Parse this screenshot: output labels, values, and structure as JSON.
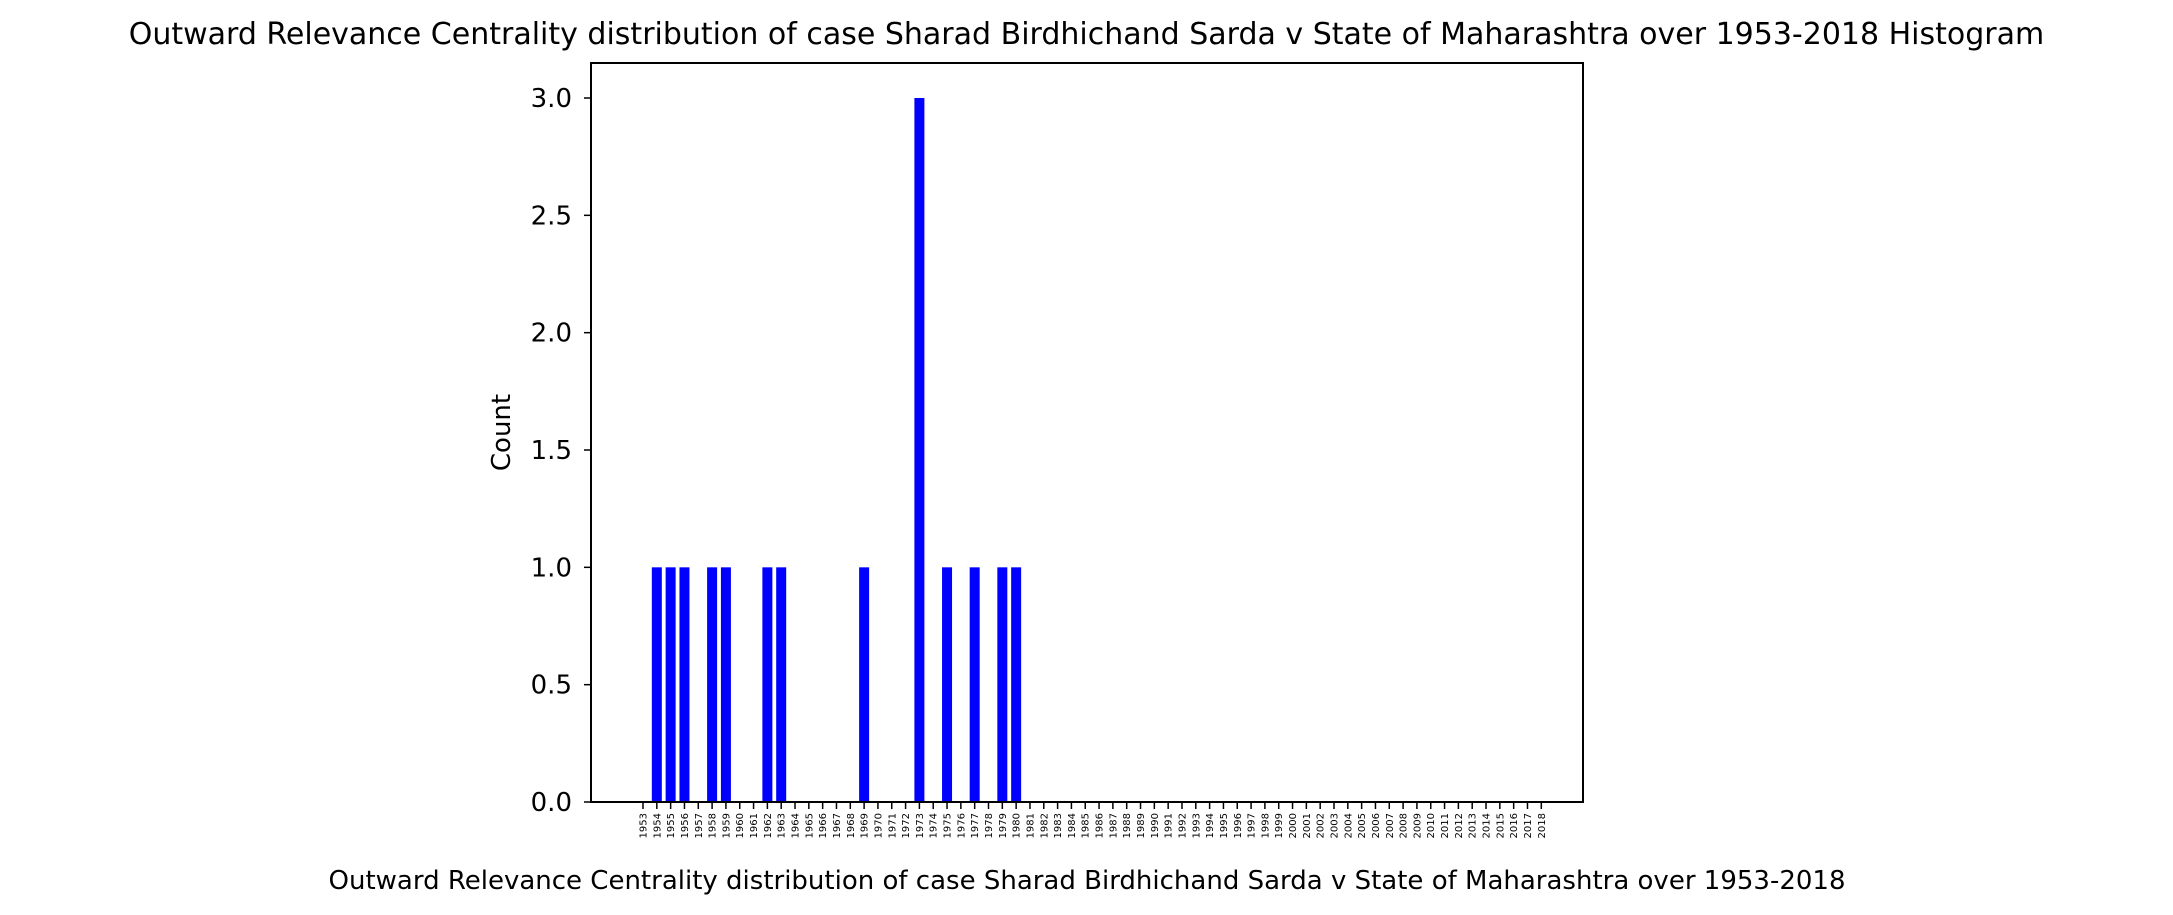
{
  "chart_data": {
    "type": "bar",
    "title": "Outward Relevance Centrality distribution of case Sharad Birdhichand Sarda v State of Maharashtra over 1953-2018 Histogram",
    "xlabel": "Outward Relevance Centrality distribution of case Sharad Birdhichand Sarda v State of Maharashtra over 1953-2018",
    "ylabel": "Count",
    "ylim": [
      0,
      3.15
    ],
    "yticks": [
      "0.0",
      "0.5",
      "1.0",
      "1.5",
      "2.0",
      "2.5",
      "3.0"
    ],
    "grid": false,
    "bar_color": "#0000ff",
    "categories": [
      "1953",
      "1954",
      "1955",
      "1956",
      "1957",
      "1958",
      "1959",
      "1960",
      "1961",
      "1962",
      "1963",
      "1964",
      "1965",
      "1966",
      "1967",
      "1968",
      "1969",
      "1970",
      "1971",
      "1972",
      "1973",
      "1974",
      "1975",
      "1976",
      "1977",
      "1978",
      "1979",
      "1980",
      "1981",
      "1982",
      "1983",
      "1984",
      "1985",
      "1986",
      "1987",
      "1988",
      "1989",
      "1990",
      "1991",
      "1992",
      "1993",
      "1994",
      "1995",
      "1996",
      "1997",
      "1998",
      "1999",
      "2000",
      "2001",
      "2002",
      "2003",
      "2004",
      "2005",
      "2006",
      "2007",
      "2008",
      "2009",
      "2010",
      "2011",
      "2012",
      "2013",
      "2014",
      "2015",
      "2016",
      "2017",
      "2018"
    ],
    "values": [
      0,
      1,
      1,
      1,
      0,
      1,
      1,
      0,
      0,
      1,
      1,
      0,
      0,
      0,
      0,
      0,
      1,
      0,
      0,
      0,
      3,
      0,
      1,
      0,
      1,
      0,
      1,
      1,
      0,
      0,
      0,
      0,
      0,
      0,
      0,
      0,
      0,
      0,
      0,
      0,
      0,
      0,
      0,
      0,
      0,
      0,
      0,
      0,
      0,
      0,
      0,
      0,
      0,
      0,
      0,
      0,
      0,
      0,
      0,
      0,
      0,
      0,
      0,
      0,
      0,
      0
    ]
  }
}
